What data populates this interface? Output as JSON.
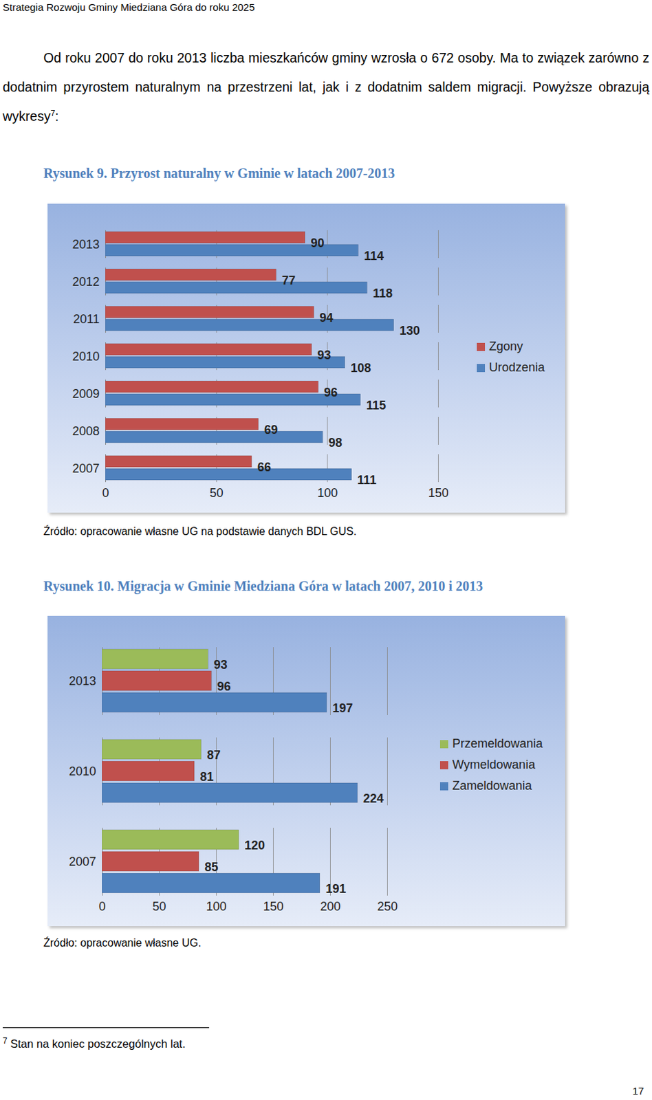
{
  "header": "Strategia Rozwoju Gminy Miedziana Góra do roku 2025",
  "paragraph": {
    "text": "Od roku 2007 do roku 2013 liczba mieszkańców gminy wzrosła o 672 osoby. Ma to związek zarówno z dodatnim przyrostem naturalnym na przestrzeni lat, jak i z dodatnim saldem migracji. Powyższe obrazują wykresy",
    "footnote_ref": "7",
    "after": ":"
  },
  "chart_data": [
    {
      "type": "bar",
      "title": "Rysunek 9. Przyrost naturalny w Gminie w latach 2007-2013",
      "source": "Źródło: opracowanie własne UG na podstawie danych BDL GUS.",
      "orientation": "horizontal",
      "categories": [
        "2013",
        "2012",
        "2011",
        "2010",
        "2009",
        "2008",
        "2007"
      ],
      "series": [
        {
          "name": "Zgony",
          "color": "#c0504d",
          "values": [
            90,
            77,
            94,
            93,
            96,
            69,
            66
          ]
        },
        {
          "name": "Urodzenia",
          "color": "#4f81bd",
          "values": [
            114,
            118,
            130,
            108,
            115,
            98,
            111
          ]
        }
      ],
      "xlim": [
        0,
        150
      ],
      "xticks": [
        0,
        50,
        100,
        150
      ],
      "grid": true,
      "data_labels": true,
      "legend": "right"
    },
    {
      "type": "bar",
      "title": "Rysunek 10. Migracja w Gminie Miedziana Góra w latach 2007, 2010 i 2013",
      "source": "Źródło: opracowanie własne UG.",
      "orientation": "horizontal",
      "categories": [
        "2013",
        "2010",
        "2007"
      ],
      "series": [
        {
          "name": "Przemeldowania",
          "color": "#9bbb59",
          "values": [
            93,
            87,
            120
          ]
        },
        {
          "name": "Wymeldowania",
          "color": "#c0504d",
          "values": [
            96,
            81,
            85
          ]
        },
        {
          "name": "Zameldowania",
          "color": "#4f81bd",
          "values": [
            197,
            224,
            191
          ]
        }
      ],
      "xlim": [
        0,
        250
      ],
      "xticks": [
        0,
        50,
        100,
        150,
        200,
        250
      ],
      "grid": true,
      "data_labels": true,
      "legend": "right"
    }
  ],
  "footnote": {
    "mark": "7",
    "text": "Stan na koniec poszczególnych lat."
  },
  "page_number": 17
}
